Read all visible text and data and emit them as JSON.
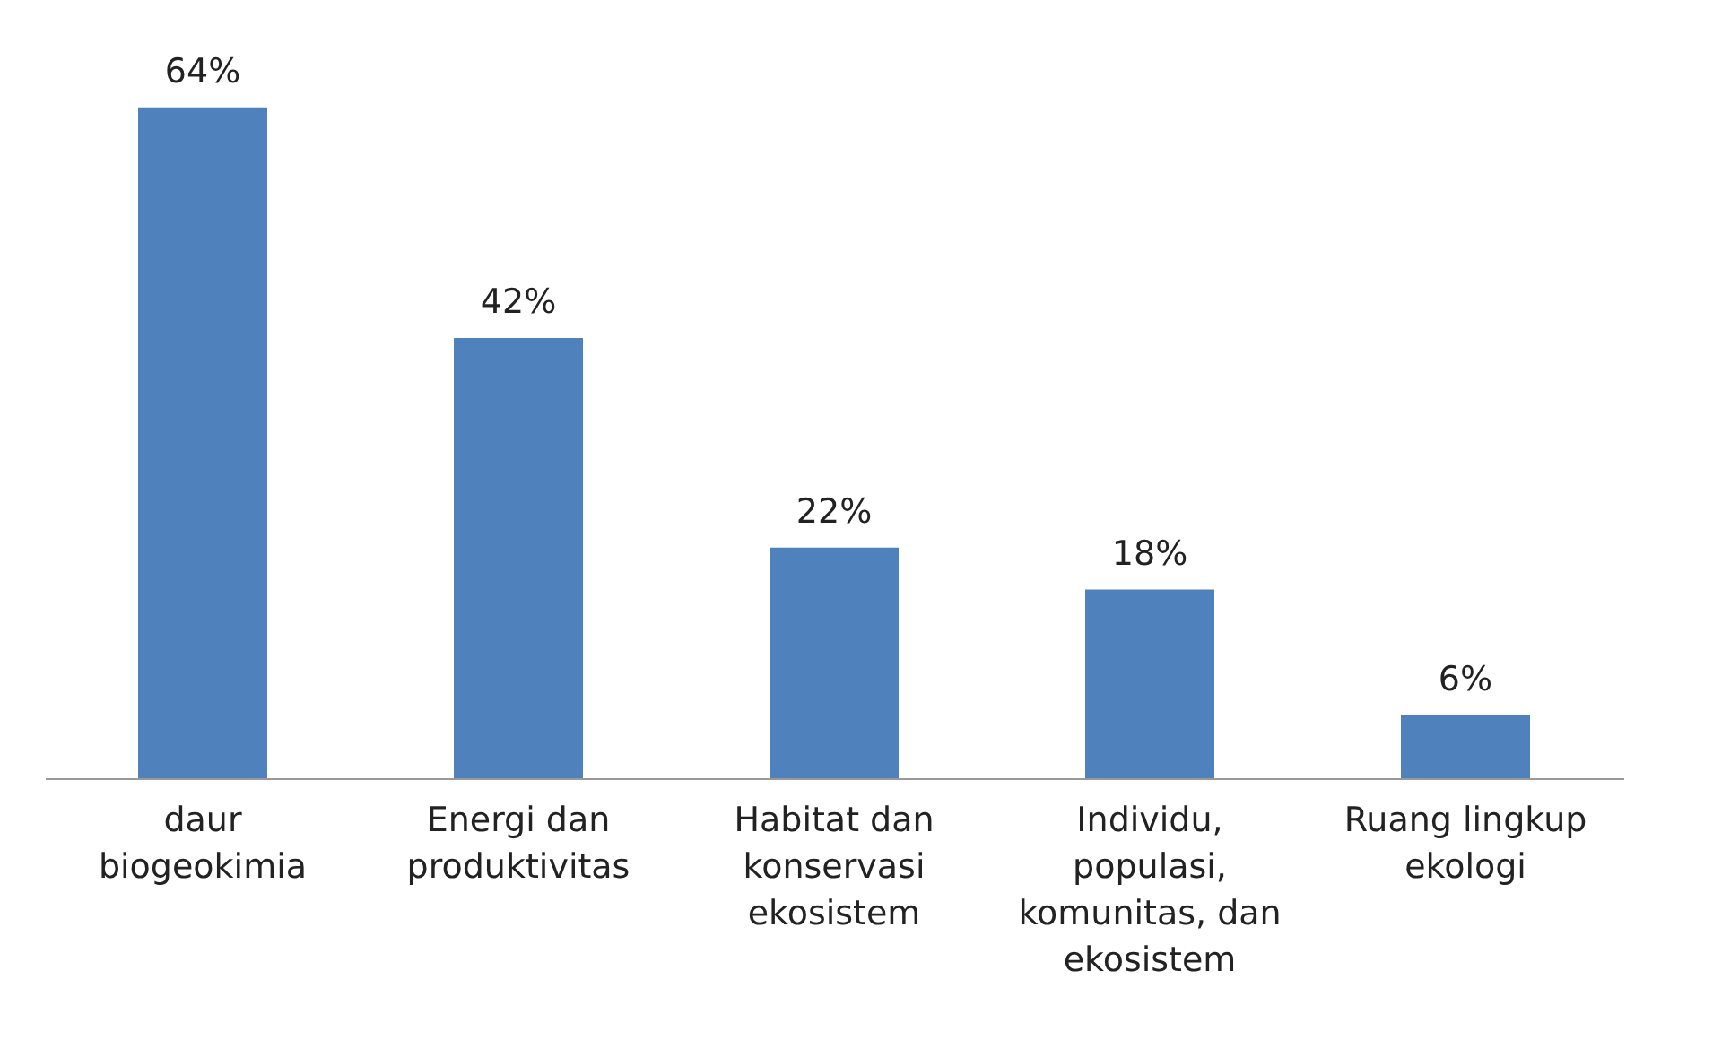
{
  "chart_data": {
    "type": "bar",
    "categories": [
      "daur biogeokimia",
      "Energi dan produktivitas",
      "Habitat dan konservasi ekosistem",
      "Individu, populasi, komunitas, dan ekosistem",
      "Ruang lingkup ekologi"
    ],
    "values": [
      64,
      42,
      22,
      18,
      6
    ],
    "value_labels": [
      "64%",
      "42%",
      "22%",
      "18%",
      "6%"
    ],
    "color": "#4f81bd",
    "grid": false,
    "tick_labels": "x"
  }
}
